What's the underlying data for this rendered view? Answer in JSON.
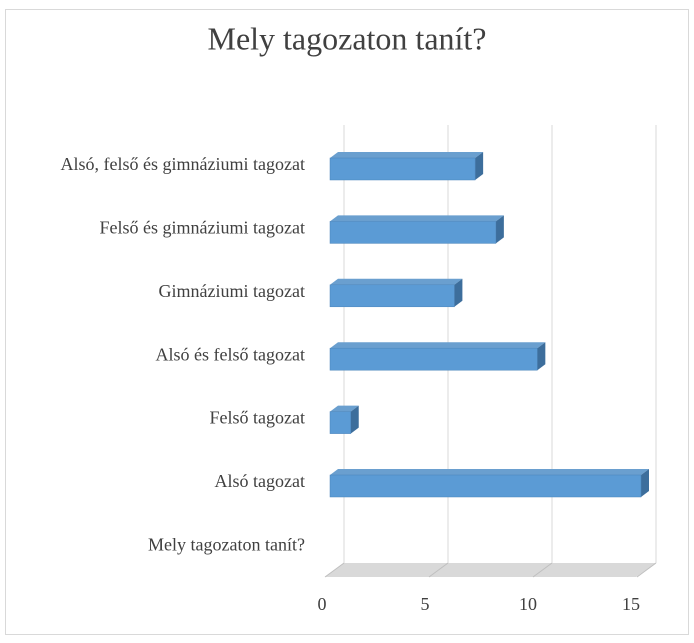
{
  "chart_data": {
    "type": "bar3d_horizontal",
    "title": "Mely tagozaton tanít?",
    "categories": [
      "Alsó, felső és gimnáziumi tagozat",
      "Felső és gimnáziumi tagozat",
      "Gimnáziumi tagozat",
      "Alsó és felső tagozat",
      "Felső tagozat",
      "Alsó tagozat",
      "Mely tagozaton tanít?"
    ],
    "values": [
      7,
      8,
      6,
      10,
      1,
      15,
      null
    ],
    "color": "#5b9bd5",
    "xlim": [
      0,
      15
    ],
    "xticks": [
      0,
      5,
      10,
      15
    ],
    "grid": true
  }
}
